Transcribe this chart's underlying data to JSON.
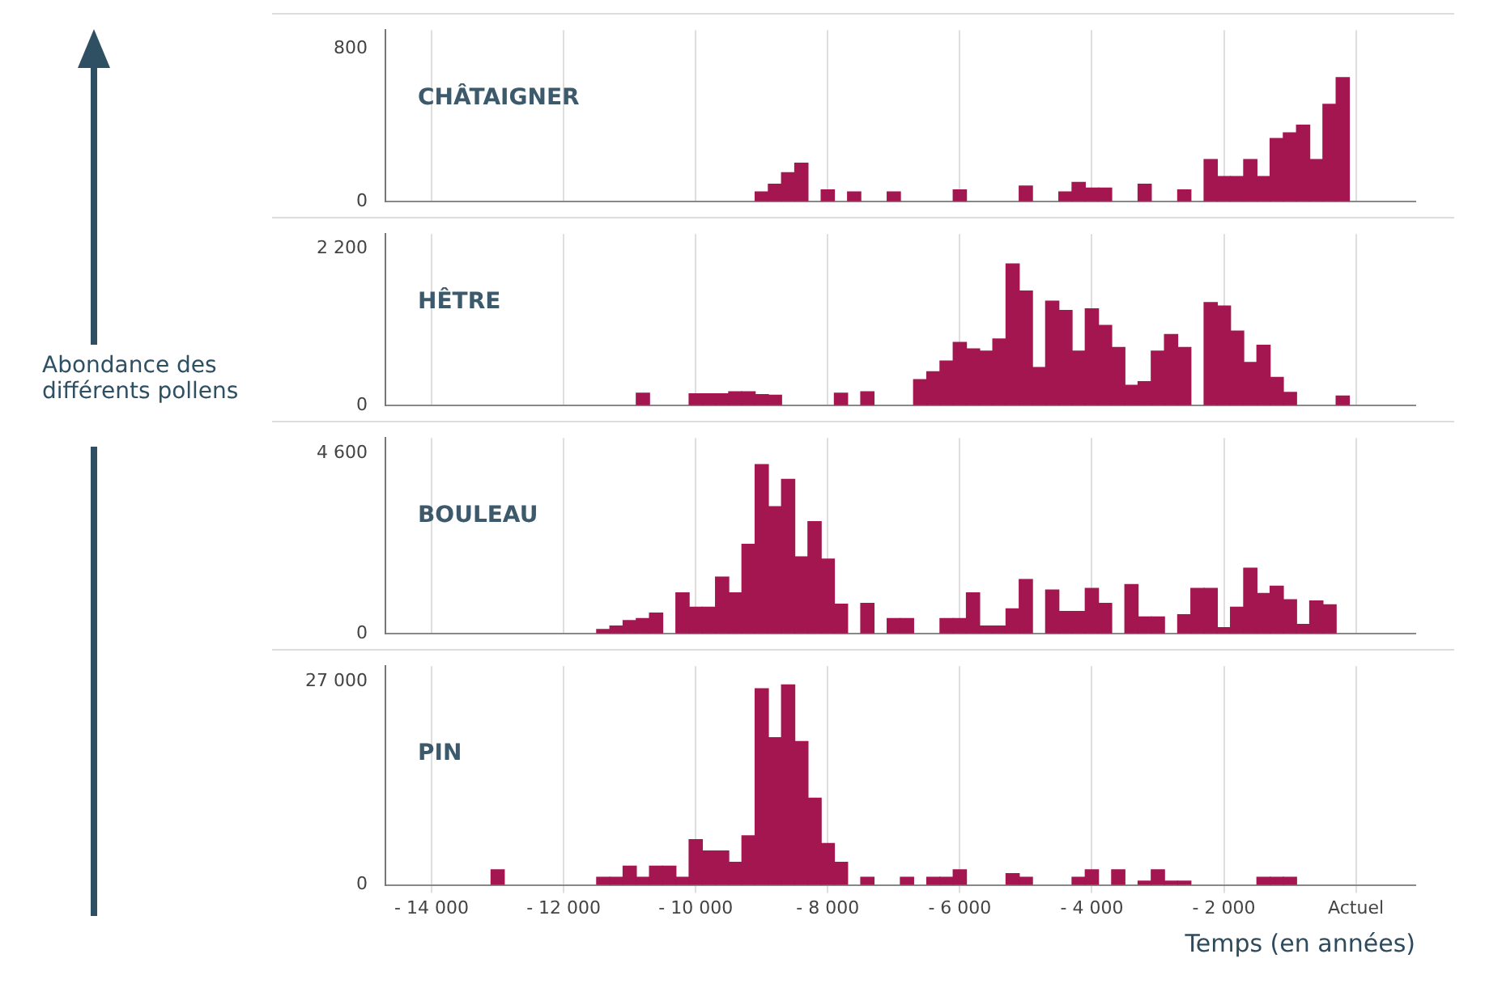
{
  "chart_data": [
    {
      "type": "histogram",
      "title": "CHÂTAIGNER",
      "color": "#a3164f",
      "grid": "x",
      "tick_labels": "y",
      "bins": [
        -9100,
        -8900,
        -8700,
        -8500,
        -8300,
        -8100,
        -7900,
        -7700,
        -7500,
        -7300,
        -7100,
        -6900,
        -6700,
        -6500,
        -6300,
        -6100,
        -5900,
        -5700,
        -5500,
        -5300,
        -5100,
        -4900,
        -4700,
        -4500,
        -4300,
        -4100,
        -3900,
        -3700,
        -3500,
        -3300,
        -3100,
        -2900,
        -2700,
        -2500,
        -2300,
        -2100,
        -1900,
        -1700,
        -1500,
        -1300,
        -1100,
        -900,
        -700,
        -500,
        -300,
        -100
      ],
      "values": [
        50,
        90,
        150,
        200,
        null,
        60,
        null,
        50,
        null,
        null,
        50,
        null,
        null,
        null,
        null,
        60,
        null,
        null,
        null,
        null,
        80,
        null,
        null,
        50,
        100,
        70,
        70,
        null,
        null,
        90,
        null,
        null,
        60,
        null,
        220,
        130,
        130,
        220,
        130,
        330,
        360,
        400,
        220,
        510,
        650
      ],
      "xlim": [
        -14700,
        900
      ],
      "xticks": [
        {
          "value": -14000,
          "label": null
        },
        {
          "value": -12000,
          "label": null
        },
        {
          "value": -10000,
          "label": null
        },
        {
          "value": -8000,
          "label": null
        },
        {
          "value": -6000,
          "label": null
        },
        {
          "value": -4000,
          "label": null
        },
        {
          "value": -2000,
          "label": null
        },
        {
          "value": 0,
          "label": null
        }
      ],
      "ylim": [
        0,
        900
      ],
      "yticks": [
        {
          "value": 0,
          "label": "0"
        },
        800
      ]
    },
    {
      "type": "histogram",
      "title": "HÊTRE",
      "ylabel": "Abondance des différents pollens",
      "color": "#a3164f",
      "grid": "x",
      "tick_labels": "y",
      "bins": [
        -10900,
        -10700,
        -10500,
        -10300,
        -10100,
        -9900,
        -9700,
        -9500,
        -9300,
        -9100,
        -8900,
        -8700,
        -8500,
        -8300,
        -8100,
        -7900,
        -7700,
        -7500,
        -7300,
        -7100,
        -6900,
        -6700,
        -6500,
        -6300,
        -6100,
        -5900,
        -5700,
        -5500,
        -5300,
        -5100,
        -4900,
        -4700,
        -4500,
        -4300,
        -4100,
        -3900,
        -3700,
        -3500,
        -3300,
        -3100,
        -2900,
        -2700,
        -2500,
        -2300,
        -2100,
        -1900,
        -1700,
        -1500,
        -1300,
        -1100,
        -900,
        -700,
        -500,
        -300,
        -100
      ],
      "values": [
        170,
        null,
        null,
        null,
        160,
        160,
        160,
        190,
        190,
        150,
        140,
        null,
        null,
        null,
        null,
        170,
        null,
        190,
        null,
        null,
        null,
        360,
        470,
        620,
        880,
        790,
        760,
        930,
        1980,
        1600,
        530,
        1460,
        1330,
        760,
        1350,
        1120,
        810,
        280,
        330,
        760,
        990,
        810,
        null,
        1440,
        1390,
        1040,
        600,
        840,
        390,
        180,
        null,
        null,
        null,
        130
      ],
      "xlim": [
        -14700,
        900
      ],
      "xticks": [
        {
          "value": -14000,
          "label": null
        },
        {
          "value": -12000,
          "label": null
        },
        {
          "value": -10000,
          "label": null
        },
        {
          "value": -8000,
          "label": null
        },
        {
          "value": -6000,
          "label": null
        },
        {
          "value": -4000,
          "label": null
        },
        {
          "value": -2000,
          "label": null
        },
        {
          "value": 0,
          "label": null
        }
      ],
      "ylim": [
        0,
        2400
      ],
      "yticks": [
        {
          "value": 0,
          "label": "0"
        },
        {
          "value": 2200,
          "label": "2 200"
        }
      ]
    },
    {
      "type": "histogram",
      "title": "BOULEAU",
      "color": "#a3164f",
      "grid": "x",
      "tick_labels": "y",
      "bins": [
        -11500,
        -11300,
        -11100,
        -10900,
        -10700,
        -10500,
        -10300,
        -10100,
        -9900,
        -9700,
        -9500,
        -9300,
        -9100,
        -8900,
        -8700,
        -8500,
        -8300,
        -8100,
        -7900,
        -7700,
        -7500,
        -7300,
        -7100,
        -6900,
        -6700,
        -6500,
        -6300,
        -6100,
        -5900,
        -5700,
        -5500,
        -5300,
        -5100,
        -4900,
        -4700,
        -4500,
        -4300,
        -4100,
        -3900,
        -3700,
        -3500,
        -3300,
        -3100,
        -2900,
        -2700,
        -2500,
        -2300,
        -2100,
        -1900,
        -1700,
        -1500,
        -1300,
        -1100,
        -900,
        -700,
        -500,
        -300
      ],
      "values": [
        100,
        190,
        330,
        380,
        520,
        null,
        1040,
        670,
        670,
        1440,
        1040,
        2280,
        4320,
        3240,
        3940,
        1960,
        2860,
        1900,
        750,
        null,
        770,
        null,
        380,
        380,
        null,
        null,
        380,
        380,
        1040,
        190,
        190,
        630,
        1380,
        null,
        1110,
        560,
        560,
        1150,
        770,
        null,
        1250,
        420,
        420,
        null,
        480,
        1150,
        1150,
        150,
        670,
        1670,
        1020,
        1210,
        860,
        230,
        830,
        730
      ],
      "xlim": [
        -14700,
        900
      ],
      "xticks": [
        {
          "value": -14000,
          "label": null
        },
        {
          "value": -12000,
          "label": null
        },
        {
          "value": -10000,
          "label": null
        },
        {
          "value": -8000,
          "label": null
        },
        {
          "value": -6000,
          "label": null
        },
        {
          "value": -4000,
          "label": null
        },
        {
          "value": -2000,
          "label": null
        },
        {
          "value": 0,
          "label": null
        }
      ],
      "ylim": [
        0,
        5000
      ],
      "yticks": [
        {
          "value": 0,
          "label": "0"
        },
        {
          "value": 4600,
          "label": "4 600"
        }
      ]
    },
    {
      "type": "histogram",
      "title": "PIN",
      "xlabel": "Temps (en années)",
      "color": "#a3164f",
      "grid": "x",
      "bins": [
        -13100,
        -12900,
        -12700,
        -12500,
        -12300,
        -12100,
        -11900,
        -11700,
        -11500,
        -11300,
        -11100,
        -10900,
        -10700,
        -10500,
        -10300,
        -10100,
        -9900,
        -9700,
        -9500,
        -9300,
        -9100,
        -8900,
        -8700,
        -8500,
        -8300,
        -8100,
        -7900,
        -7700,
        -7500,
        -7300,
        -7100,
        -6900,
        -6700,
        -6500,
        -6300,
        -6100,
        -5900,
        -5700,
        -5500,
        -5300,
        -5100,
        -4900,
        -4700,
        -4500,
        -4300,
        -4100,
        -3900,
        -3700,
        -3500,
        -3300,
        -3100,
        -2900,
        -2700,
        -2500,
        -2300,
        -2100,
        -1900,
        -1700,
        -1500,
        -1300,
        -1100,
        -900
      ],
      "values": [
        2000,
        null,
        null,
        null,
        null,
        null,
        null,
        null,
        1000,
        1000,
        2500,
        1000,
        2500,
        2500,
        1000,
        6000,
        4500,
        4500,
        3000,
        6500,
        26000,
        19500,
        26500,
        19000,
        11500,
        5500,
        3000,
        null,
        1000,
        null,
        null,
        1000,
        null,
        1000,
        1000,
        2000,
        null,
        null,
        null,
        1500,
        1000,
        null,
        null,
        null,
        1000,
        2000,
        null,
        2000,
        null,
        500,
        2000,
        500,
        500,
        null,
        null,
        null,
        null,
        null,
        1000,
        1000,
        1000
      ],
      "xlim": [
        -14700,
        900
      ],
      "xticks": [
        {
          "value": -14000,
          "label": "- 14 000"
        },
        {
          "value": -12000,
          "label": "- 12 000"
        },
        {
          "value": -10000,
          "label": "- 10 000"
        },
        {
          "value": -8000,
          "label": "- 8 000"
        },
        {
          "value": -6000,
          "label": "- 6 000"
        },
        {
          "value": -4000,
          "label": "- 4 000"
        },
        {
          "value": -2000,
          "label": "- 2 000"
        },
        {
          "value": 0,
          "label": "Actuel"
        }
      ],
      "ylim": [
        0,
        29000
      ],
      "yticks": [
        {
          "value": 0,
          "label": "0"
        },
        {
          "value": 27000,
          "label": "27 000"
        }
      ]
    }
  ]
}
